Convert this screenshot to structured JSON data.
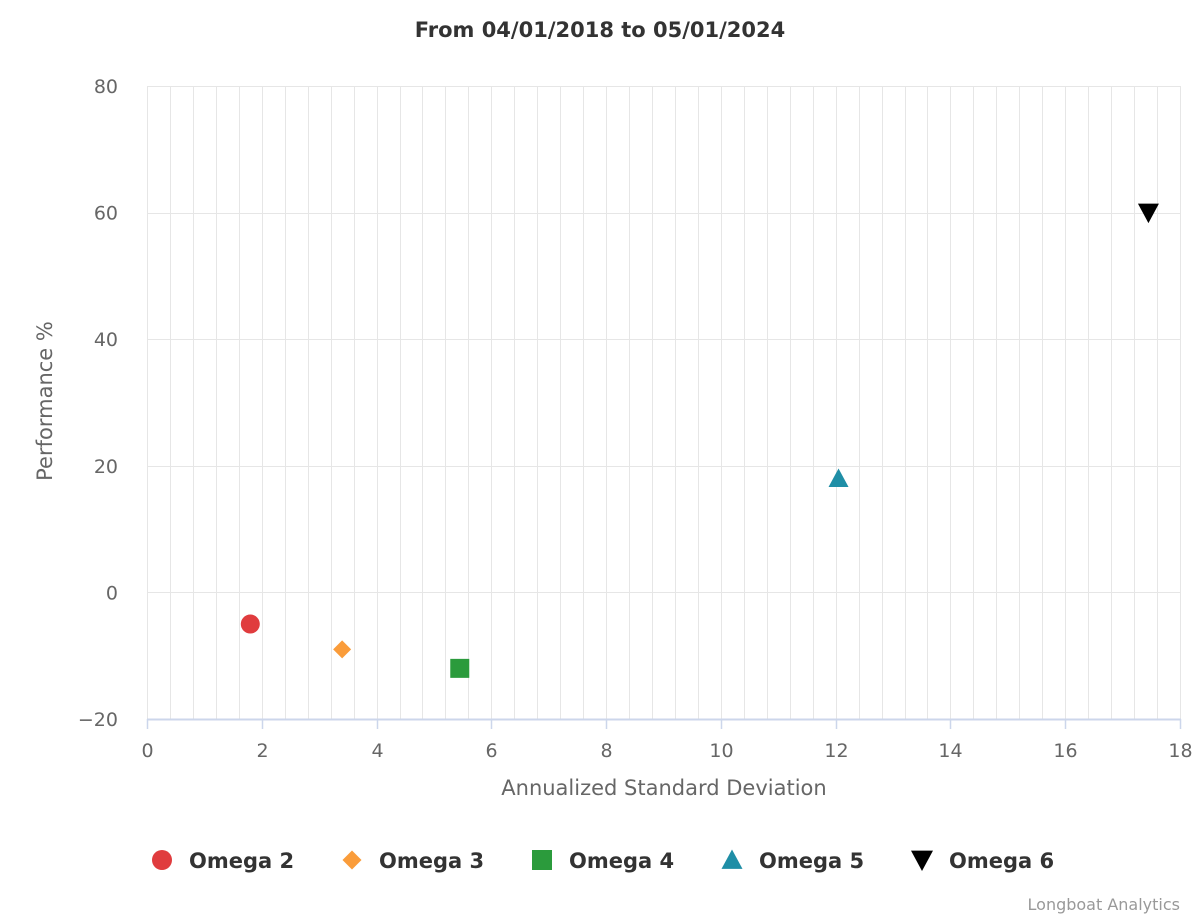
{
  "chart_data": {
    "type": "scatter",
    "title": "From 04/01/2018 to 05/01/2024",
    "xlabel": "Annualized Standard Deviation",
    "ylabel": "Performance %",
    "xlim": [
      0,
      18
    ],
    "ylim": [
      -20,
      80
    ],
    "x_ticks": [
      0,
      2,
      4,
      6,
      8,
      10,
      12,
      14,
      16,
      18
    ],
    "y_ticks": [
      -20,
      0,
      20,
      40,
      60,
      80
    ],
    "x_tick_labels": [
      "0",
      "2",
      "4",
      "6",
      "8",
      "10",
      "12",
      "14",
      "16",
      "18"
    ],
    "y_tick_labels": [
      "−20",
      "0",
      "20",
      "40",
      "60",
      "80"
    ],
    "grid": true,
    "legend_position": "bottom",
    "series": [
      {
        "name": "Omega 2",
        "marker": "circle",
        "color": "#e03c3e",
        "x": 1.8,
        "y": -5
      },
      {
        "name": "Omega 3",
        "marker": "diamond",
        "color": "#fa9c3a",
        "x": 3.4,
        "y": -9
      },
      {
        "name": "Omega 4",
        "marker": "square",
        "color": "#2b9b3c",
        "x": 5.45,
        "y": -12
      },
      {
        "name": "Omega 5",
        "marker": "triangle",
        "color": "#1f8ea6",
        "x": 12.05,
        "y": 18
      },
      {
        "name": "Omega 6",
        "marker": "triangle-down",
        "color": "#000000",
        "x": 17.45,
        "y": 60
      }
    ]
  },
  "credit": "Longboat Analytics",
  "colors": {
    "grid": "#e6e6e6",
    "axis_line": "#ccd6eb",
    "title": "#333333",
    "tick_label": "#666666",
    "credit": "#999999"
  }
}
